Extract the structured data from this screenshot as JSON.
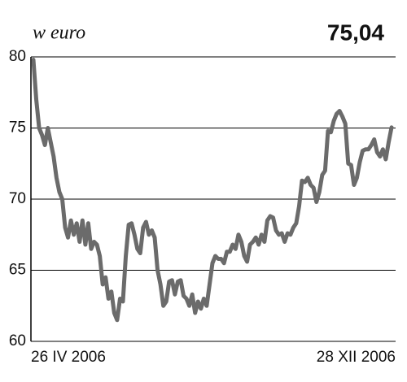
{
  "chart_data": {
    "type": "line",
    "title": "w euro",
    "current_value_label": "75,04",
    "categories": [
      "26 IV 2006",
      null,
      null,
      null,
      null,
      null,
      null,
      null,
      null,
      null,
      null,
      null,
      null,
      null,
      null,
      null,
      null,
      null,
      null,
      null,
      null,
      null,
      null,
      null,
      null,
      null,
      null,
      null,
      null,
      null,
      null,
      null,
      null,
      null,
      null,
      null,
      null,
      null,
      null,
      null,
      null,
      null,
      null,
      null,
      null,
      null,
      null,
      null,
      null,
      null,
      null,
      null,
      null,
      null,
      null,
      null,
      null,
      null,
      null,
      null,
      null,
      null,
      null,
      null,
      null,
      null,
      null,
      null,
      null,
      null,
      null,
      null,
      null,
      null,
      null,
      null,
      null,
      null,
      null,
      null,
      null,
      null,
      null,
      null,
      null,
      null,
      null,
      null,
      null,
      null,
      null,
      null,
      null,
      null,
      null,
      null,
      null,
      null,
      null,
      null,
      null,
      null,
      null,
      null,
      null,
      null,
      null,
      null,
      null,
      null,
      null,
      null,
      null,
      null,
      null,
      null,
      null,
      null,
      null,
      null,
      null,
      null,
      null,
      null,
      "28 XII 2006"
    ],
    "series": [
      {
        "color": "#6b6b6b",
        "values": [
          79.8,
          77,
          75,
          74.5,
          73.8,
          75,
          74,
          73,
          71.5,
          70.5,
          70,
          68,
          67.3,
          68.5,
          67.5,
          68.3,
          67,
          68.5,
          66.8,
          68.3,
          66.5,
          67,
          66.8,
          66,
          64,
          64.5,
          63,
          63.5,
          62,
          61.5,
          63,
          62.8,
          66,
          68.2,
          68.3,
          67.5,
          66.5,
          66.2,
          68,
          68.4,
          67.5,
          67.8,
          67.3,
          65,
          64,
          62.5,
          62.8,
          64.2,
          64.3,
          63.3,
          64.2,
          64.3,
          63.2,
          63,
          62.5,
          63.3,
          62,
          62.8,
          62.3,
          63,
          62.5,
          64,
          65.5,
          66,
          65.8,
          65.8,
          65.5,
          66.3,
          66.3,
          66.8,
          66.5,
          67.5,
          67,
          66,
          65.6,
          66.8,
          67,
          67.3,
          66.8,
          67.5,
          67,
          68.5,
          68.8,
          68.7,
          67.8,
          67.5,
          67.6,
          67,
          67.6,
          67.5,
          68,
          68.3,
          69.5,
          71.3,
          71.2,
          71.5,
          71,
          70.8,
          69.8,
          70.5,
          71.7,
          72,
          74.8,
          74.7,
          75.5,
          76,
          76.2,
          75.8,
          75.3,
          72.5,
          72.4,
          71,
          71.5,
          72.6,
          73.4,
          73.5,
          73.5,
          73.8,
          74.2,
          73.3,
          73,
          73.5,
          72.8,
          74,
          75.04
        ]
      }
    ],
    "ylim": [
      60,
      80
    ],
    "yticks": [
      60,
      65,
      70,
      75,
      80
    ],
    "grid": true
  }
}
